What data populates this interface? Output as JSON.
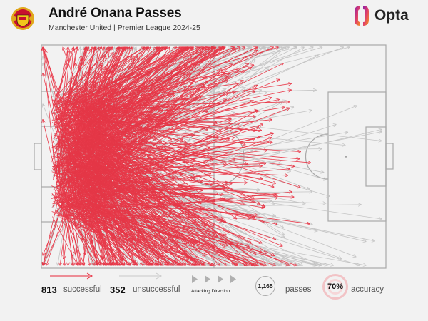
{
  "header": {
    "title": "André Onana Passes",
    "subtitle": "Manchester United | Premier League 2024-25",
    "club_logo": "manchester-united-crest",
    "brand": "Opta"
  },
  "legend": {
    "successful_count": "813",
    "successful_label": "successful",
    "unsuccessful_count": "352",
    "unsuccessful_label": "unsuccessful",
    "direction_label": "Attacking Direction",
    "total_passes": "1,165",
    "passes_label": "passes",
    "accuracy_value": "70%",
    "accuracy_label": "accuracy"
  },
  "colors": {
    "successful": "#e8283a",
    "unsuccessful": "#c4c4c4",
    "pitch_lines": "#a8a8a8",
    "background": "#f2f2f2",
    "accuracy_ring": "#f2c3c6"
  },
  "chart_data": {
    "type": "scatter",
    "title": "André Onana Passes",
    "subtitle": "Manchester United | Premier League 2024-25",
    "description": "Pass map on a football pitch; arrows originate from goalkeeper area (left) and point in attacking direction (right).",
    "series": [
      {
        "name": "successful",
        "count": 813,
        "color": "#e8283a"
      },
      {
        "name": "unsuccessful",
        "count": 352,
        "color": "#c4c4c4"
      }
    ],
    "total_passes": 1165,
    "accuracy_pct": 70,
    "attacking_direction": "left-to-right",
    "pitch": {
      "x_range": [
        0,
        100
      ],
      "y_range": [
        0,
        100
      ]
    },
    "legend_position": "bottom"
  }
}
